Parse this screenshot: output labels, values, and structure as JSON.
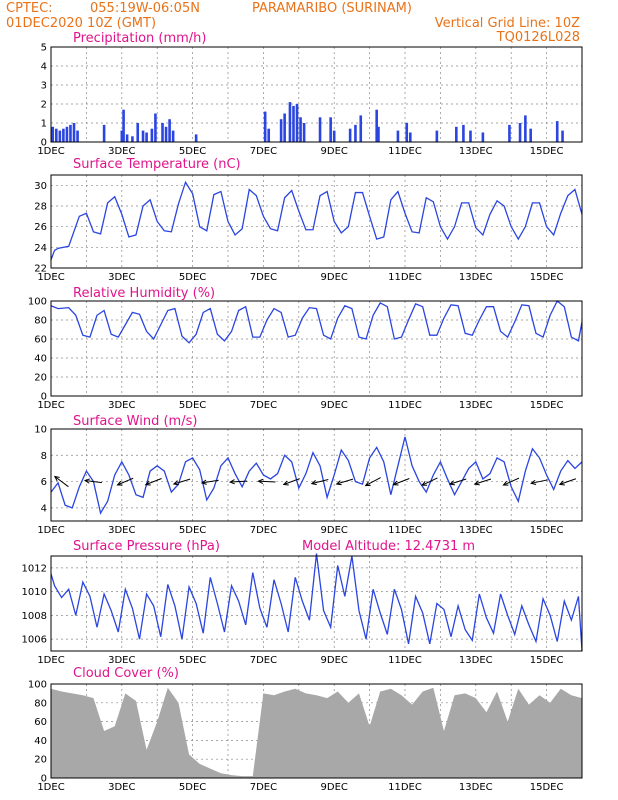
{
  "header": {
    "source": "CPTEC:",
    "coords": "055:19W-06:05N",
    "station": "PARAMARIBO (SURINAM)",
    "run": "01DEC2020 10Z (GMT)",
    "grid_note": "Vertical Grid Line: 10Z",
    "code": "TQ0126L028"
  },
  "colors": {
    "header": "#e8731a",
    "panel_title": "#e0148c",
    "series": "#2b45e0",
    "cloud": "#a8a8a8",
    "wind_arrow": "#000000"
  },
  "x_axis": {
    "tick_labels": [
      "1DEC",
      "3DEC",
      "5DEC",
      "7DEC",
      "9DEC",
      "11DEC",
      "13DEC",
      "15DEC"
    ]
  },
  "panels": {
    "precip": {
      "title": "Precipitation (mm/h)"
    },
    "temp": {
      "title": "Surface Temperature (nC)"
    },
    "rh": {
      "title": "Relative Humidity (%)"
    },
    "wind": {
      "title": "Surface Wind (m/s)"
    },
    "pressure": {
      "title": "Surface Pressure (hPa)",
      "note": "Model Altitude: 12.4731 m"
    },
    "cloud": {
      "title": "Cloud Cover (%)"
    }
  },
  "chart_data": [
    {
      "type": "bar",
      "title": "Precipitation (mm/h)",
      "x_unit": "day of Dec 2020",
      "ylim": [
        0,
        5
      ],
      "yticks": [
        "0",
        "1",
        "2",
        "3",
        "4",
        "5"
      ],
      "x": [
        1.05,
        1.15,
        1.25,
        1.35,
        1.45,
        1.55,
        1.65,
        1.75,
        2.5,
        3.0,
        3.05,
        3.15,
        3.3,
        3.45,
        3.6,
        3.7,
        3.85,
        3.95,
        4.15,
        4.25,
        4.35,
        4.45,
        5.1,
        7.05,
        7.15,
        7.5,
        7.6,
        7.75,
        7.85,
        7.95,
        8.05,
        8.15,
        8.6,
        8.9,
        9.0,
        9.45,
        9.6,
        9.75,
        10.2,
        10.25,
        10.8,
        11.05,
        11.15,
        11.9,
        12.45,
        12.65,
        12.85,
        13.2,
        13.95,
        14.25,
        14.4,
        14.55,
        15.3,
        15.45
      ],
      "values": [
        0.8,
        0.7,
        0.6,
        0.7,
        0.8,
        0.9,
        1.0,
        0.6,
        0.9,
        0.6,
        1.7,
        0.4,
        0.3,
        1.0,
        0.6,
        0.5,
        0.7,
        1.5,
        1.0,
        0.8,
        1.2,
        0.6,
        0.4,
        1.6,
        0.7,
        1.2,
        1.5,
        2.1,
        1.9,
        2.0,
        1.3,
        1.0,
        1.3,
        1.3,
        0.6,
        0.7,
        0.9,
        1.4,
        1.7,
        0.8,
        0.6,
        1.0,
        0.5,
        0.6,
        0.8,
        0.9,
        0.6,
        0.5,
        0.9,
        1.0,
        1.4,
        0.7,
        1.1,
        0.6
      ]
    },
    {
      "type": "line",
      "title": "Surface Temperature (nC)",
      "ylim": [
        22,
        31
      ],
      "yticks": [
        "22",
        "24",
        "26",
        "28",
        "30"
      ],
      "x": [
        1.0,
        1.1,
        1.2,
        1.5,
        1.8,
        2.0,
        2.2,
        2.4,
        2.6,
        2.8,
        3.0,
        3.2,
        3.4,
        3.6,
        3.8,
        4.0,
        4.2,
        4.4,
        4.6,
        4.8,
        5.0,
        5.2,
        5.4,
        5.6,
        5.8,
        6.0,
        6.2,
        6.4,
        6.6,
        6.8,
        7.0,
        7.2,
        7.4,
        7.6,
        7.8,
        8.0,
        8.2,
        8.4,
        8.6,
        8.8,
        9.0,
        9.2,
        9.4,
        9.6,
        9.8,
        10.0,
        10.2,
        10.4,
        10.6,
        10.8,
        11.0,
        11.2,
        11.4,
        11.6,
        11.8,
        12.0,
        12.2,
        12.4,
        12.6,
        12.8,
        13.0,
        13.2,
        13.4,
        13.6,
        13.8,
        14.0,
        14.2,
        14.4,
        14.6,
        14.8,
        15.0,
        15.2,
        15.4,
        15.6,
        15.8,
        16.0
      ],
      "values": [
        22.8,
        23.7,
        23.9,
        24.1,
        27.0,
        27.3,
        25.5,
        25.3,
        28.3,
        28.9,
        27.2,
        25.0,
        25.2,
        28.0,
        28.6,
        26.5,
        25.6,
        25.5,
        28.2,
        30.3,
        29.2,
        26.0,
        25.6,
        29.1,
        29.4,
        26.5,
        25.2,
        25.8,
        29.6,
        29.0,
        27.0,
        25.8,
        25.6,
        28.8,
        29.5,
        27.5,
        25.7,
        25.7,
        29.0,
        29.4,
        26.5,
        25.4,
        26.0,
        29.3,
        29.3,
        27.0,
        24.8,
        25.0,
        28.6,
        29.4,
        27.3,
        25.5,
        25.4,
        28.8,
        28.4,
        26.0,
        24.8,
        26.0,
        28.3,
        28.3,
        25.9,
        25.2,
        27.2,
        28.5,
        28.0,
        26.0,
        24.8,
        26.0,
        28.3,
        28.3,
        26.0,
        25.2,
        27.3,
        29.0,
        29.6,
        27.2
      ]
    },
    {
      "type": "line",
      "title": "Relative Humidity (%)",
      "ylim": [
        0,
        100
      ],
      "yticks": [
        "0",
        "20",
        "40",
        "60",
        "80",
        "100"
      ],
      "x": [
        1.0,
        1.2,
        1.5,
        1.7,
        1.9,
        2.1,
        2.3,
        2.5,
        2.7,
        2.9,
        3.1,
        3.3,
        3.5,
        3.7,
        3.9,
        4.1,
        4.3,
        4.5,
        4.7,
        4.9,
        5.1,
        5.3,
        5.5,
        5.7,
        5.9,
        6.1,
        6.3,
        6.5,
        6.7,
        6.9,
        7.1,
        7.3,
        7.5,
        7.7,
        7.9,
        8.1,
        8.3,
        8.5,
        8.7,
        8.9,
        9.1,
        9.3,
        9.5,
        9.7,
        9.9,
        10.1,
        10.3,
        10.5,
        10.7,
        10.9,
        11.1,
        11.3,
        11.5,
        11.7,
        11.9,
        12.1,
        12.3,
        12.5,
        12.7,
        12.9,
        13.1,
        13.3,
        13.5,
        13.7,
        13.9,
        14.1,
        14.3,
        14.5,
        14.7,
        14.9,
        15.1,
        15.3,
        15.5,
        15.7,
        15.9,
        16.0
      ],
      "values": [
        95,
        92,
        93,
        85,
        64,
        62,
        85,
        90,
        65,
        62,
        75,
        88,
        86,
        68,
        60,
        75,
        90,
        92,
        63,
        56,
        65,
        88,
        92,
        65,
        58,
        68,
        90,
        94,
        62,
        62,
        80,
        92,
        88,
        62,
        64,
        82,
        93,
        92,
        64,
        60,
        82,
        95,
        92,
        62,
        60,
        85,
        98,
        94,
        60,
        62,
        80,
        97,
        94,
        64,
        64,
        82,
        96,
        95,
        66,
        64,
        80,
        94,
        94,
        68,
        62,
        78,
        96,
        95,
        66,
        62,
        85,
        100,
        94,
        62,
        58,
        78
      ]
    },
    {
      "type": "line",
      "title": "Surface Wind (m/s)",
      "ylim": [
        3,
        10
      ],
      "yticks": [
        "4",
        "6",
        "8",
        "10"
      ],
      "x": [
        1.0,
        1.2,
        1.4,
        1.6,
        1.8,
        2.0,
        2.2,
        2.4,
        2.6,
        2.8,
        3.0,
        3.2,
        3.4,
        3.6,
        3.8,
        4.0,
        4.2,
        4.4,
        4.6,
        4.8,
        5.0,
        5.2,
        5.4,
        5.6,
        5.8,
        6.0,
        6.2,
        6.4,
        6.6,
        6.8,
        7.0,
        7.2,
        7.4,
        7.6,
        7.8,
        8.0,
        8.2,
        8.4,
        8.6,
        8.8,
        9.0,
        9.2,
        9.4,
        9.6,
        9.8,
        10.0,
        10.2,
        10.4,
        10.6,
        10.8,
        11.0,
        11.2,
        11.4,
        11.6,
        11.8,
        12.0,
        12.2,
        12.4,
        12.6,
        12.8,
        13.0,
        13.2,
        13.4,
        13.6,
        13.8,
        14.0,
        14.2,
        14.4,
        14.6,
        14.8,
        15.0,
        15.2,
        15.4,
        15.6,
        15.8,
        16.0
      ],
      "values": [
        5.2,
        5.9,
        4.2,
        4.0,
        5.6,
        6.8,
        6.0,
        3.6,
        4.5,
        6.5,
        7.5,
        6.5,
        5.0,
        4.8,
        6.8,
        7.2,
        6.8,
        5.2,
        5.8,
        7.5,
        7.8,
        6.9,
        4.6,
        5.5,
        7.2,
        7.8,
        6.6,
        5.6,
        6.8,
        7.4,
        6.5,
        6.2,
        6.6,
        8.0,
        7.5,
        5.5,
        6.6,
        8.2,
        7.2,
        4.8,
        6.5,
        8.4,
        7.6,
        6.0,
        5.8,
        7.8,
        8.6,
        7.5,
        5.0,
        7.2,
        9.4,
        7.2,
        6.0,
        5.2,
        6.5,
        7.5,
        6.2,
        5.0,
        6.0,
        7.0,
        7.5,
        6.2,
        6.6,
        7.8,
        7.5,
        5.6,
        4.5,
        6.8,
        8.5,
        7.8,
        6.5,
        5.4,
        6.8,
        7.6,
        7.0,
        7.5
      ],
      "wind_arrows_x": [
        1.3,
        2.2,
        3.1,
        3.9,
        4.7,
        5.5,
        6.3,
        7.1,
        7.8,
        8.6,
        9.3,
        10.1,
        10.9,
        11.7,
        12.5,
        13.2,
        14.0,
        14.8,
        15.6
      ],
      "wind_arrows_u": [
        -0.6,
        -0.8,
        -0.95,
        -0.9,
        -1.0,
        -0.95,
        -0.9,
        -1.0,
        -0.95,
        -1.0,
        -1.0,
        -0.85,
        -0.9,
        -0.85,
        -0.95,
        -0.95,
        -0.9,
        -0.95,
        -1.0
      ],
      "wind_arrows_v": [
        0.45,
        0.1,
        -0.4,
        -0.35,
        -0.3,
        -0.15,
        -0.05,
        0.05,
        -0.35,
        -0.25,
        -0.3,
        -0.45,
        -0.35,
        -0.4,
        -0.3,
        -0.3,
        -0.4,
        -0.2,
        -0.35
      ]
    },
    {
      "type": "line",
      "title": "Surface Pressure (hPa)",
      "ylim": [
        1005,
        1013
      ],
      "yticks": [
        "1006",
        "1008",
        "1010",
        "1012"
      ],
      "x": [
        1.0,
        1.1,
        1.3,
        1.5,
        1.7,
        1.9,
        2.1,
        2.3,
        2.5,
        2.7,
        2.9,
        3.1,
        3.3,
        3.5,
        3.7,
        3.9,
        4.1,
        4.3,
        4.5,
        4.7,
        4.9,
        5.1,
        5.3,
        5.5,
        5.7,
        5.9,
        6.1,
        6.3,
        6.5,
        6.7,
        6.9,
        7.1,
        7.3,
        7.5,
        7.7,
        7.9,
        8.1,
        8.3,
        8.5,
        8.7,
        8.9,
        9.1,
        9.3,
        9.5,
        9.7,
        9.9,
        10.1,
        10.3,
        10.5,
        10.7,
        10.9,
        11.1,
        11.3,
        11.5,
        11.7,
        11.9,
        12.1,
        12.3,
        12.5,
        12.7,
        12.9,
        13.1,
        13.3,
        13.5,
        13.7,
        13.9,
        14.1,
        14.3,
        14.5,
        14.7,
        14.9,
        15.1,
        15.3,
        15.5,
        15.7,
        15.9,
        16.0
      ],
      "values": [
        1011.5,
        1010.5,
        1009.5,
        1010.2,
        1008.0,
        1010.8,
        1009.6,
        1007.0,
        1009.8,
        1008.4,
        1006.6,
        1010.2,
        1008.6,
        1006.0,
        1009.8,
        1008.8,
        1006.2,
        1010.6,
        1008.8,
        1006.0,
        1010.4,
        1009.0,
        1006.5,
        1011.2,
        1009.0,
        1006.6,
        1010.5,
        1009.2,
        1007.2,
        1011.6,
        1008.6,
        1007.0,
        1011.0,
        1009.0,
        1006.6,
        1011.2,
        1009.2,
        1007.6,
        1013.2,
        1008.4,
        1007.0,
        1012.2,
        1009.6,
        1013.0,
        1008.4,
        1006.0,
        1010.2,
        1008.2,
        1006.4,
        1010.2,
        1008.5,
        1005.6,
        1009.6,
        1008.2,
        1005.6,
        1009.0,
        1008.5,
        1006.2,
        1008.8,
        1006.8,
        1005.9,
        1009.8,
        1007.8,
        1006.5,
        1009.8,
        1008.0,
        1006.4,
        1008.8,
        1007.2,
        1005.8,
        1009.4,
        1008.0,
        1005.8,
        1009.2,
        1007.6,
        1009.6,
        1005.0
      ]
    },
    {
      "type": "area",
      "title": "Cloud Cover (%)",
      "ylim": [
        0,
        100
      ],
      "yticks": [
        "0",
        "20",
        "40",
        "60",
        "80",
        "100"
      ],
      "x": [
        1.0,
        1.3,
        1.6,
        1.9,
        2.2,
        2.5,
        2.8,
        3.1,
        3.4,
        3.7,
        4.0,
        4.3,
        4.6,
        4.9,
        5.2,
        5.5,
        5.8,
        6.1,
        6.4,
        6.7,
        7.0,
        7.3,
        7.6,
        7.9,
        8.2,
        8.5,
        8.8,
        9.1,
        9.4,
        9.7,
        10.0,
        10.3,
        10.6,
        10.9,
        11.2,
        11.5,
        11.8,
        12.1,
        12.4,
        12.7,
        13.0,
        13.3,
        13.6,
        13.9,
        14.2,
        14.5,
        14.8,
        15.1,
        15.4,
        15.7,
        16.0
      ],
      "values": [
        95,
        92,
        90,
        88,
        85,
        50,
        55,
        90,
        82,
        30,
        60,
        96,
        80,
        25,
        15,
        10,
        5,
        3,
        2,
        2,
        90,
        88,
        92,
        95,
        90,
        88,
        85,
        92,
        80,
        90,
        55,
        92,
        95,
        88,
        78,
        92,
        96,
        50,
        88,
        90,
        85,
        70,
        92,
        60,
        95,
        78,
        88,
        80,
        95,
        88,
        85
      ]
    }
  ]
}
